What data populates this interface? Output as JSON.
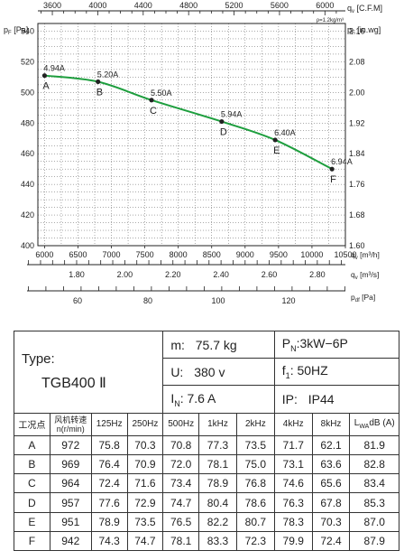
{
  "chart_data": {
    "type": "line",
    "density_note": "ρ=1.2kg/m³",
    "axes": {
      "top": {
        "label": "q",
        "sub": "v",
        "unit": "[C.F.M]",
        "ticks": [
          "3600",
          "4000",
          "4400",
          "4800",
          "5200",
          "5600",
          "6000"
        ],
        "tick_values": [
          3600,
          4000,
          4400,
          4800,
          5200,
          5600,
          6000
        ]
      },
      "left": {
        "label": "p",
        "sub": "F",
        "unit": "[Pa]",
        "ticks": [
          "540",
          "520",
          "500",
          "480",
          "460",
          "440",
          "420",
          "400"
        ],
        "tick_values": [
          540,
          520,
          500,
          480,
          460,
          440,
          420,
          400
        ]
      },
      "right": {
        "label": "p",
        "sub": "F",
        "unit": "[in.wg]",
        "ticks": [
          "2.16",
          "2.08",
          "2.00",
          "1.92",
          "1.84",
          "1.76",
          "1.68",
          "1.60"
        ]
      },
      "bottom": {
        "label": "q",
        "sub": "v",
        "unit": "[m³/h]",
        "ticks": [
          "6000",
          "6500",
          "7000",
          "7500",
          "8000",
          "8500",
          "9000",
          "9500",
          "10000",
          "10500"
        ],
        "tick_values": [
          6000,
          6500,
          7000,
          7500,
          8000,
          8500,
          9000,
          9500,
          10000,
          10500
        ]
      },
      "bottom2": {
        "label": "q",
        "sub": "v",
        "unit": "[m³/s]",
        "ticks": [
          "1.80",
          "2.00",
          "2.20",
          "2.40",
          "2.60",
          "2.80"
        ],
        "tick_values": [
          1.8,
          2.0,
          2.2,
          2.4,
          2.6,
          2.8
        ]
      },
      "bottom3": {
        "label": "p",
        "sub": "df",
        "unit": "[Pa]",
        "ticks": [
          "60",
          "80",
          "100",
          "120"
        ],
        "tick_values": [
          60,
          80,
          100,
          120
        ]
      }
    },
    "xlim": [
      5900,
      10500
    ],
    "ylim": [
      400,
      545
    ],
    "series": [
      {
        "points": [
          {
            "x": 6000,
            "y": 511,
            "current": "4.94A",
            "label": "A"
          },
          {
            "x": 6800,
            "y": 507,
            "current": "5.20A",
            "label": "B"
          },
          {
            "x": 7600,
            "y": 495,
            "current": "5.50A",
            "label": "C"
          },
          {
            "x": 8650,
            "y": 481,
            "current": "5.94A",
            "label": "D"
          },
          {
            "x": 9450,
            "y": 469,
            "current": "6.40A",
            "label": "E"
          },
          {
            "x": 10300,
            "y": 450,
            "current": "6.94A",
            "label": "F"
          }
        ]
      }
    ],
    "grid": true,
    "line_color": "#1e9e3e"
  },
  "table": {
    "type_label": "Type:",
    "model": "TGB400 Ⅱ",
    "specs": {
      "m_label": "m:",
      "m_value": "75.7 kg",
      "pn_label": "P",
      "pn_sub": "N",
      "pn_value": ":3kW−6P",
      "u_label": "U:",
      "u_value": "380 v",
      "f_label": "f",
      "f_sub": "1",
      "f_value": ":  50HZ",
      "in_label": "I",
      "in_sub": "N",
      "in_value": ":  7.6  A",
      "ip_label": "IP:",
      "ip_value": "IP44"
    },
    "headers": [
      "工况点",
      "风机转速 n(r/min)",
      "125Hz",
      "250Hz",
      "500Hz",
      "1kHz",
      "2kHz",
      "4kHz",
      "8kHz",
      "LwA dB (A)"
    ],
    "lwa_label": "L",
    "lwa_sub": "WA",
    "lwa_unit": "dB (A)",
    "rows": [
      [
        "A",
        "972",
        "75.8",
        "70.3",
        "70.8",
        "77.3",
        "73.5",
        "71.7",
        "62.1",
        "81.9"
      ],
      [
        "B",
        "969",
        "76.4",
        "70.9",
        "72.0",
        "78.1",
        "75.0",
        "73.1",
        "63.6",
        "82.8"
      ],
      [
        "C",
        "964",
        "72.4",
        "71.6",
        "73.4",
        "78.9",
        "76.8",
        "74.6",
        "65.6",
        "83.4"
      ],
      [
        "D",
        "957",
        "77.6",
        "72.9",
        "74.7",
        "80.4",
        "78.6",
        "76.3",
        "67.8",
        "85.3"
      ],
      [
        "E",
        "951",
        "78.9",
        "73.5",
        "76.5",
        "82.2",
        "80.7",
        "78.3",
        "70.3",
        "87.0"
      ],
      [
        "F",
        "942",
        "74.3",
        "74.7",
        "78.1",
        "83.3",
        "72.3",
        "79.9",
        "72.4",
        "87.9"
      ]
    ]
  }
}
